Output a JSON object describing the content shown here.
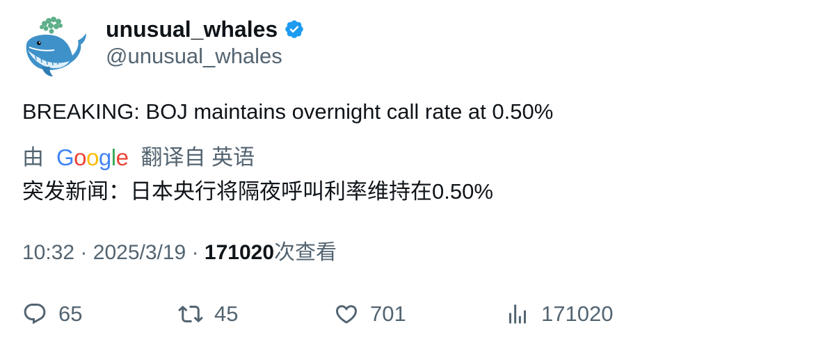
{
  "author": {
    "display_name": "unusual_whales",
    "handle": "@unusual_whales",
    "verified": true,
    "verified_color": "#1d9bf0"
  },
  "tweet": {
    "text": "BREAKING: BOJ maintains overnight call rate at 0.50%"
  },
  "translation": {
    "prefix": "由",
    "provider": "Google",
    "suffix": "翻译自 英语",
    "text": "突发新闻：日本央行将隔夜呼叫利率维持在0.50%"
  },
  "meta": {
    "time": "10:32",
    "separator": "·",
    "date": "2025/3/19",
    "views_count": "171020",
    "views_label": "次查看"
  },
  "actions": {
    "replies": "65",
    "retweets": "45",
    "likes": "701",
    "views": "171020"
  },
  "colors": {
    "text_primary": "#0f1419",
    "text_secondary": "#536471",
    "google_blue": "#4285f4",
    "google_red": "#ea4335",
    "google_yellow": "#fbbc05",
    "google_green": "#34a853"
  }
}
